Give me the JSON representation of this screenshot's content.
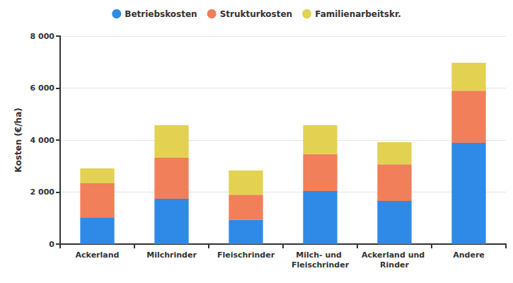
{
  "chart_data": {
    "type": "bar",
    "stacked": true,
    "y_label": "Kosten (€/ha)",
    "categories": [
      "Ackerland",
      "Milchrinder",
      "Fleischrinder",
      "Milch- und Fleischrinder",
      "Ackerland und Rinder",
      "Andere"
    ],
    "series": [
      {
        "name": "Betriebskosten",
        "color": "#2e8ae6",
        "values": [
          1030,
          1740,
          930,
          2040,
          1660,
          3890
        ]
      },
      {
        "name": "Strukturkosten",
        "color": "#f07f5a",
        "values": [
          1310,
          1580,
          970,
          1420,
          1410,
          2010
        ]
      },
      {
        "name": "Familienarbeitskr.",
        "color": "#e3d152",
        "values": [
          570,
          1250,
          930,
          1110,
          850,
          1070
        ]
      }
    ],
    "ylim": [
      0,
      8000
    ],
    "yticks": [
      0,
      {
        "value": 2000,
        "label": "2 000"
      },
      {
        "value": 4000,
        "label": "4 000"
      },
      {
        "value": 6000,
        "label": "6 000"
      },
      {
        "value": 8000,
        "label": "8 000"
      }
    ],
    "grid": true,
    "legend": "top"
  }
}
